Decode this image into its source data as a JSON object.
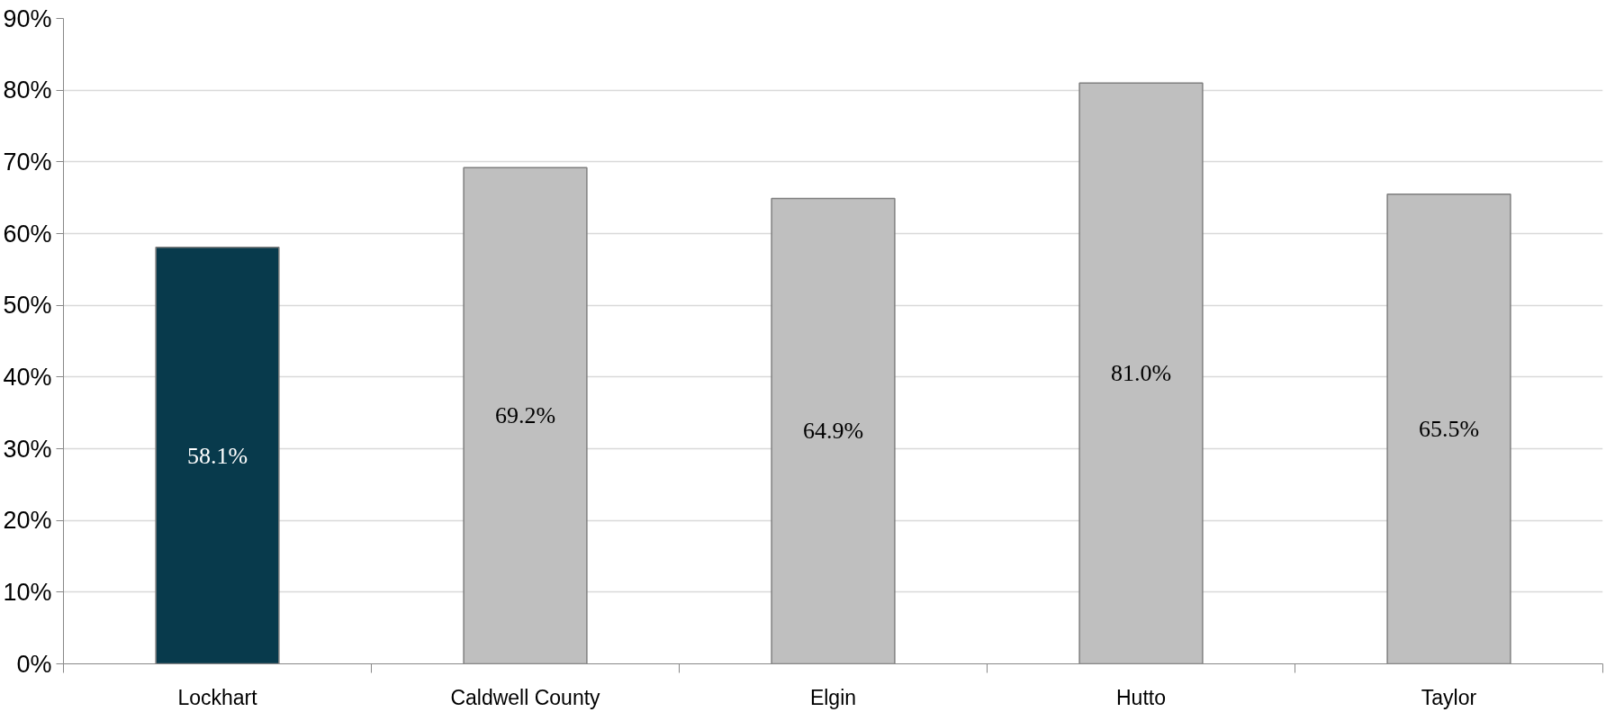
{
  "chart_data": {
    "type": "bar",
    "categories": [
      "Lockhart",
      "Caldwell County",
      "Elgin",
      "Hutto",
      "Taylor"
    ],
    "values": [
      58.1,
      69.2,
      64.9,
      81.0,
      65.5
    ],
    "value_labels": [
      "58.1%",
      "69.2%",
      "64.9%",
      "81.0%",
      "65.5%"
    ],
    "colors": [
      "#083a4c",
      "#bfbfbf",
      "#bfbfbf",
      "#bfbfbf",
      "#bfbfbf"
    ],
    "ylim": [
      0,
      90
    ],
    "yticks": [
      {
        "value": 0,
        "label": "0%"
      },
      {
        "value": 10,
        "label": "10%"
      },
      {
        "value": 20,
        "label": "20%"
      },
      {
        "value": 30,
        "label": "30%"
      },
      {
        "value": 40,
        "label": "40%"
      },
      {
        "value": 50,
        "label": "50%"
      },
      {
        "value": 60,
        "label": "60%"
      },
      {
        "value": 70,
        "label": "70%"
      },
      {
        "value": 80,
        "label": "80%"
      },
      {
        "value": 90,
        "label": "90%"
      }
    ],
    "grid": "y"
  }
}
